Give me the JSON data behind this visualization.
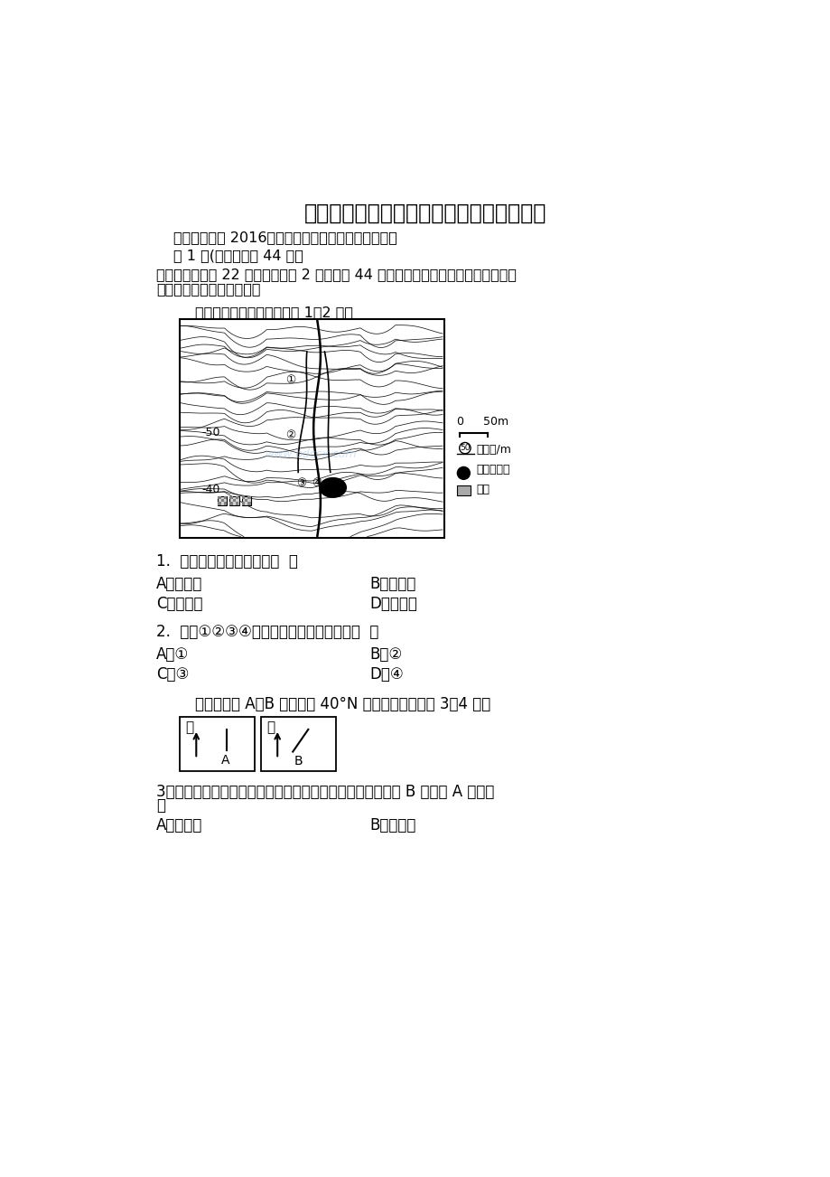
{
  "title": "湖北省黄冈市高二地理下学期期末考试试题",
  "subtitle": "湖北省黄冈市 2016年春季高二年级期末考试地理试题",
  "section1": "第 1 卷(选择题，共 44 分）",
  "intro_line1": "　　一、本卷共 22 小题。每小题 2 分，共计 44 分。在每小题列出的四个选项中。只",
  "intro_line2": "有一项是符合题目要求的。",
  "map_instruction": "　　读某地等高线图，完成 1～2 题。",
  "q1": "1.  图中最高点位于聚落的（  ）",
  "q1_A": "A．东北方",
  "q1_B": "B．东南方",
  "q1_C": "C．西北方",
  "q1_D": "D．西南方",
  "q2": "2.  图中①②③④处附近河流流速最快的是（  ）",
  "q2_A": "A．①",
  "q2_B": "B．②",
  "q2_C": "C．③",
  "q2_D": "D．④",
  "q3_intro": "　　下图中 A、B 两地同在 40°N 纬线上，读图回答 3～4 题。",
  "q3_line1": "3．若北京时间同一时刻两地杆影的指向如上图所示，则可知 B 地位于 A 地的（",
  "q3_line2": "）",
  "q3_A": "A．东南方",
  "q3_B": "B．西南方",
  "legend_contour": "等高线/m",
  "legend_river": "河流、池塘",
  "legend_settle": "聚落",
  "label_50": "-50",
  "label_40": "-40",
  "north_label": "北",
  "bg_color": "#ffffff",
  "watermark_text": "www.bdccx.com"
}
